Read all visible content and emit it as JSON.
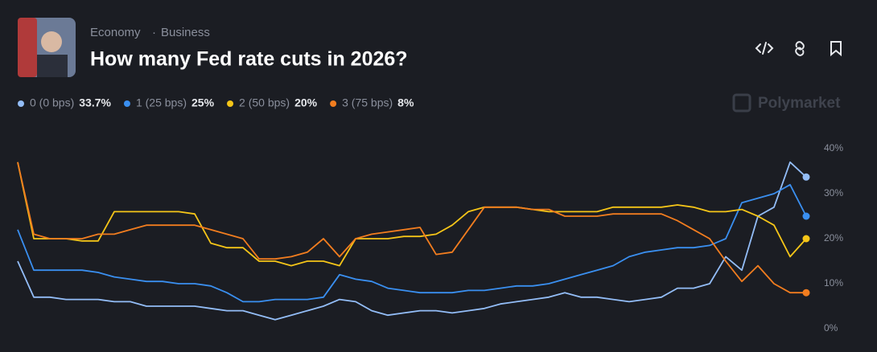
{
  "header": {
    "breadcrumb": [
      "Economy",
      "Business"
    ],
    "brand": "Polymarket"
  },
  "chart_data": {
    "type": "line",
    "title": "How many Fed rate cuts in 2026?",
    "categories": [
      null,
      null,
      null,
      null,
      null,
      null,
      null,
      null,
      null,
      null,
      null,
      null,
      null,
      null,
      null,
      null,
      null,
      null,
      null,
      null,
      null,
      null,
      null,
      null,
      null,
      null,
      null,
      null,
      null,
      null,
      null,
      null,
      null,
      null,
      null,
      null,
      null,
      null,
      null,
      null,
      null,
      null,
      null,
      null,
      null,
      null,
      null,
      null,
      null,
      null
    ],
    "series": [
      {
        "name": "0 (0 bps)",
        "color": "#93bdf7",
        "current": {
          "value": 33.7,
          "label": "33.7%"
        },
        "values": [
          15,
          7,
          7,
          6.5,
          6.5,
          6.5,
          6,
          6,
          5,
          5,
          5,
          5,
          4.5,
          4,
          4,
          3,
          2,
          3,
          4,
          5,
          6.5,
          6,
          4,
          3,
          3.5,
          4,
          4,
          3.5,
          4,
          4.5,
          5.5,
          6,
          6.5,
          7,
          8,
          7,
          7,
          6.5,
          6,
          6.5,
          7,
          9,
          9,
          10,
          16,
          13,
          25,
          27,
          37,
          33.7
        ]
      },
      {
        "name": "1 (25 bps)",
        "color": "#3a8ff0",
        "current": {
          "value": 25,
          "label": "25%"
        },
        "values": [
          22,
          13,
          13,
          13,
          13,
          12.5,
          11.5,
          11,
          10.5,
          10.5,
          10,
          10,
          9.5,
          8,
          6,
          6,
          6.5,
          6.5,
          6.5,
          7,
          12,
          11,
          10.5,
          9,
          8.5,
          8,
          8,
          8,
          8.5,
          8.5,
          9,
          9.5,
          9.5,
          10,
          11,
          12,
          13,
          14,
          16,
          17,
          17.5,
          18,
          18,
          18.5,
          20,
          28,
          29,
          30,
          32,
          25
        ]
      },
      {
        "name": "2 (50 bps)",
        "color": "#f5c518",
        "current": {
          "value": 20,
          "label": "20%"
        },
        "values": [
          37,
          20,
          20,
          20,
          19.5,
          19.5,
          26,
          26,
          26,
          26,
          26,
          25.5,
          19,
          18,
          18,
          15,
          15,
          14,
          15,
          15,
          14,
          20,
          20,
          20,
          20.5,
          20.5,
          21,
          23,
          26,
          27,
          27,
          27,
          26.5,
          26,
          26,
          26,
          26,
          27,
          27,
          27,
          27,
          27.5,
          27,
          26,
          26,
          26.5,
          25,
          23,
          16,
          20
        ]
      },
      {
        "name": "3 (75 bps)",
        "color": "#f27d1f",
        "current": {
          "value": 8,
          "label": "8%"
        },
        "values": [
          37,
          21,
          20,
          20,
          20,
          21,
          21,
          22,
          23,
          23,
          23,
          23,
          22,
          21,
          20,
          15.5,
          15.5,
          16,
          17,
          20,
          16,
          20,
          21,
          21.5,
          22,
          22.5,
          16.5,
          17,
          22,
          27,
          27,
          27,
          26.5,
          26.5,
          25,
          25,
          25,
          25.5,
          25.5,
          25.5,
          25.5,
          24,
          22,
          20,
          15,
          10.5,
          14,
          10,
          8,
          8
        ]
      }
    ],
    "ylim": [
      0,
      40
    ],
    "yticks": [
      {
        "value": 0,
        "label": "0%"
      },
      {
        "value": 10,
        "label": "10%"
      },
      {
        "value": 20,
        "label": "20%"
      },
      {
        "value": 30,
        "label": "30%"
      },
      {
        "value": 40,
        "label": "40%"
      }
    ],
    "grid": false
  }
}
